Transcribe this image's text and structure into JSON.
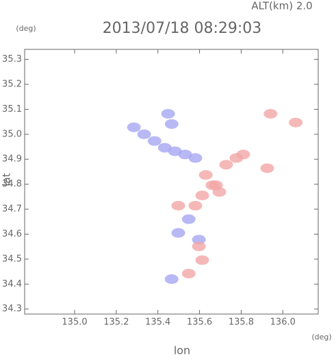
{
  "chart_data": {
    "type": "scatter",
    "title": "2013/07/18 08:29:03",
    "subtitle": "ALT(km)  2.0",
    "y_unit": "(deg)",
    "x_unit": "(deg)",
    "xlabel": "lon",
    "ylabel": "lat",
    "xlim": [
      134.76,
      136.17
    ],
    "ylim": [
      34.28,
      35.34
    ],
    "xticks": [
      {
        "value": 135,
        "label": "135.0"
      },
      135.2,
      135.4,
      135.6,
      135.8,
      {
        "value": 136,
        "label": "136.0"
      }
    ],
    "yticks": [
      34.3,
      34.4,
      34.5,
      34.6,
      34.7,
      34.8,
      34.9,
      {
        "value": 35,
        "label": "35.0"
      },
      35.1,
      35.2,
      35.3
    ],
    "series": [
      {
        "color": "#a6a6f2",
        "x": [
          135.285,
          135.334,
          135.384,
          135.433,
          135.466,
          135.482,
          135.531,
          135.58,
          135.449,
          135.548,
          135.498,
          135.597,
          135.466
        ],
        "values": [
          35.028,
          35.0,
          34.973,
          34.946,
          35.041,
          34.932,
          34.919,
          34.905,
          35.082,
          34.66,
          34.605,
          34.578,
          34.42
        ]
      },
      {
        "color": "#f2a6a6",
        "x": [
          135.63,
          135.662,
          135.695,
          135.613,
          135.728,
          135.777,
          135.81,
          135.925,
          135.941,
          136.062,
          135.679,
          135.498,
          135.58,
          135.597,
          135.613,
          135.548
        ],
        "values": [
          34.837,
          34.796,
          34.769,
          34.755,
          34.878,
          34.905,
          34.919,
          34.864,
          35.082,
          35.047,
          34.796,
          34.714,
          34.714,
          34.551,
          34.496,
          34.442
        ]
      }
    ]
  }
}
